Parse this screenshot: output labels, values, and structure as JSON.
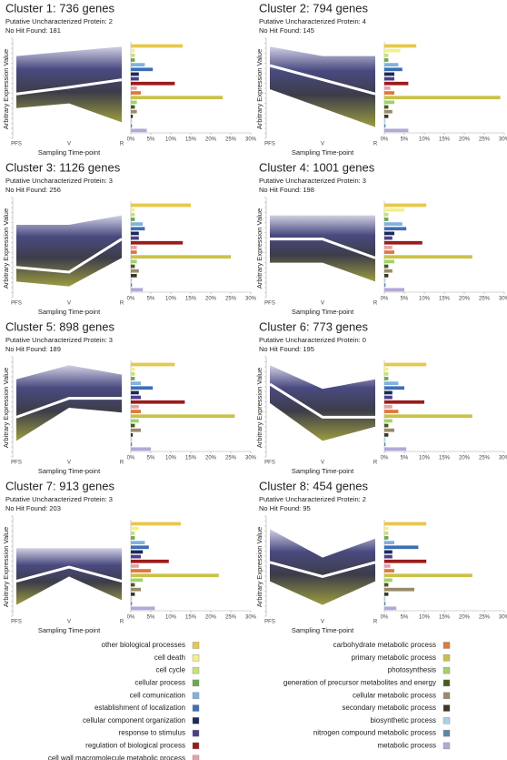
{
  "chart_data": {
    "line_axes": {
      "xlabel": "Sampling Time-point",
      "ylabel": "Arbitrary Expression Value",
      "categories": [
        "PFS",
        "V",
        "R"
      ],
      "ylim": [
        0,
        1
      ]
    },
    "bar_axes": {
      "xlim": [
        0,
        30
      ],
      "xticks": [
        {
          "value": 0,
          "label": "0%"
        },
        {
          "value": 5,
          "label": "5%"
        },
        {
          "value": 10,
          "label": "10%"
        },
        {
          "value": 15,
          "label": "15%"
        },
        {
          "value": 20,
          "label": "20%"
        },
        {
          "value": 25,
          "label": "25%"
        },
        {
          "value": 30,
          "label": "30%"
        }
      ]
    },
    "clusters": [
      {
        "title": "Cluster 1: 736 genes",
        "putative": "Putative Uncharacterized Protein: 2",
        "nohit": "No Hit Found: 181",
        "line": {
          "type": "line",
          "mean": [
            0.45,
            0.52,
            0.6
          ],
          "low": [
            0.3,
            0.35,
            0.15
          ],
          "high": [
            0.85,
            0.9,
            0.95
          ]
        },
        "bars": {
          "type": "bar",
          "values": [
            13,
            1,
            1,
            1,
            3.5,
            5.5,
            2,
            2,
            11,
            1.5,
            2.5,
            23,
            1.5,
            1,
            1.5,
            0.5,
            0.3,
            0.3,
            4
          ]
        }
      },
      {
        "title": "Cluster 2: 794 genes",
        "putative": "Putative Uncharacterized Protein: 4",
        "nohit": "No Hit Found: 145",
        "line": {
          "type": "line",
          "mean": [
            0.75,
            0.6,
            0.45
          ],
          "low": [
            0.5,
            0.3,
            0.1
          ],
          "high": [
            0.95,
            0.85,
            0.85
          ]
        },
        "bars": {
          "type": "bar",
          "values": [
            8,
            4,
            1,
            1,
            3.5,
            4.5,
            2.5,
            2.5,
            6,
            1.5,
            2.5,
            29,
            2.5,
            1,
            2,
            1,
            0.3,
            0.3,
            6
          ]
        }
      },
      {
        "title": "Cluster 3: 1126 genes",
        "putative": "Putative Uncharacterized Protein: 3",
        "nohit": "No Hit Found: 256",
        "line": {
          "type": "line",
          "mean": [
            0.3,
            0.25,
            0.6
          ],
          "low": [
            0.15,
            0.1,
            0.4
          ],
          "high": [
            0.75,
            0.75,
            0.85
          ]
        },
        "bars": {
          "type": "bar",
          "values": [
            15,
            1,
            1,
            1,
            3,
            3.5,
            2,
            2,
            13,
            1.5,
            1.5,
            25,
            1.5,
            1,
            2,
            1.5,
            0.3,
            0.3,
            3
          ]
        }
      },
      {
        "title": "Cluster 4: 1001 genes",
        "putative": "Putative Uncharacterized Protein: 3",
        "nohit": "No Hit Found: 198",
        "line": {
          "type": "line",
          "mean": [
            0.6,
            0.6,
            0.4
          ],
          "low": [
            0.35,
            0.35,
            0.15
          ],
          "high": [
            0.85,
            0.85,
            0.85
          ]
        },
        "bars": {
          "type": "bar",
          "values": [
            10.5,
            5,
            1,
            1,
            4.5,
            5.5,
            2.5,
            2,
            9.5,
            2,
            2.5,
            22,
            2.5,
            1,
            2,
            1,
            0.3,
            0.3,
            5
          ]
        }
      },
      {
        "title": "Cluster 5: 898 genes",
        "putative": "Putative Uncharacterized Protein: 3",
        "nohit": "No Hit Found: 189",
        "line": {
          "type": "line",
          "mean": [
            0.4,
            0.6,
            0.6
          ],
          "low": [
            0.15,
            0.5,
            0.45
          ],
          "high": [
            0.8,
            0.95,
            0.85
          ]
        },
        "bars": {
          "type": "bar",
          "values": [
            11,
            1,
            1,
            1,
            2.5,
            5.5,
            2,
            2.5,
            13.5,
            2,
            2.5,
            26,
            2,
            1,
            2.5,
            0.5,
            0.3,
            0.3,
            5
          ]
        }
      },
      {
        "title": "Cluster 6: 773 genes",
        "putative": "Putative Uncharacterized Protein: 0",
        "nohit": "No Hit Found: 195",
        "line": {
          "type": "line",
          "mean": [
            0.75,
            0.4,
            0.4
          ],
          "low": [
            0.55,
            0.15,
            0.3
          ],
          "high": [
            0.95,
            0.7,
            0.8
          ]
        },
        "bars": {
          "type": "bar",
          "values": [
            10.5,
            1,
            1,
            1,
            3.5,
            5,
            2,
            2,
            10,
            2,
            3.5,
            22,
            2,
            1,
            2.5,
            1,
            0.3,
            0.3,
            5.5
          ]
        }
      },
      {
        "title": "Cluster 7: 913 genes",
        "putative": "Putative Uncharacterized Protein: 3",
        "nohit": "No Hit Found: 203",
        "line": {
          "type": "line",
          "mean": [
            0.35,
            0.5,
            0.35
          ],
          "low": [
            0.1,
            0.4,
            0.15
          ],
          "high": [
            0.7,
            0.7,
            0.7
          ]
        },
        "bars": {
          "type": "bar",
          "values": [
            12.5,
            2,
            1,
            1,
            3.5,
            4.5,
            3,
            2.5,
            9.5,
            2,
            5,
            22,
            3,
            1,
            2.5,
            1,
            0.3,
            0.3,
            6
          ]
        }
      },
      {
        "title": "Cluster 8: 454 genes",
        "putative": "Putative Uncharacterized Protein: 2",
        "nohit": "No Hit Found: 95",
        "line": {
          "type": "line",
          "mean": [
            0.55,
            0.4,
            0.55
          ],
          "low": [
            0.35,
            0.1,
            0.35
          ],
          "high": [
            0.9,
            0.6,
            0.8
          ]
        },
        "bars": {
          "type": "bar",
          "values": [
            10.5,
            1,
            1,
            1,
            2.5,
            8.5,
            2,
            2,
            10.5,
            1.5,
            2.5,
            22,
            2,
            1,
            7.5,
            1,
            0.3,
            0.3,
            3
          ]
        }
      }
    ],
    "legend": {
      "names": [
        "other biological processes",
        "cell death",
        "cell cycle",
        "cellular process",
        "cell comunication",
        "establishment of localization",
        "cellular component organization",
        "response to stimulus",
        "regulation of biological process",
        "cell wall macromolecule metabolic process",
        "carbohydrate metabolic process",
        "primary metabolic process",
        "photosynthesis",
        "generation of precursor metabolites and energy",
        "cellular metabolic process",
        "secondary metabolic process",
        "biosynthetic process",
        "nitrogen compound metabolic process",
        "metabolic process"
      ],
      "colors": [
        "#e6c84a",
        "#f3f08a",
        "#c8e07a",
        "#6aa84f",
        "#7fb2e0",
        "#3d6fb6",
        "#1a2a5a",
        "#4b3e8a",
        "#9b1b1b",
        "#e6a0a8",
        "#e0783a",
        "#c9c24a",
        "#9ed36a",
        "#4a5a1a",
        "#9a8a6a",
        "#3a3a22",
        "#a8d0e8",
        "#5a86a8",
        "#b4a8d8"
      ]
    }
  }
}
